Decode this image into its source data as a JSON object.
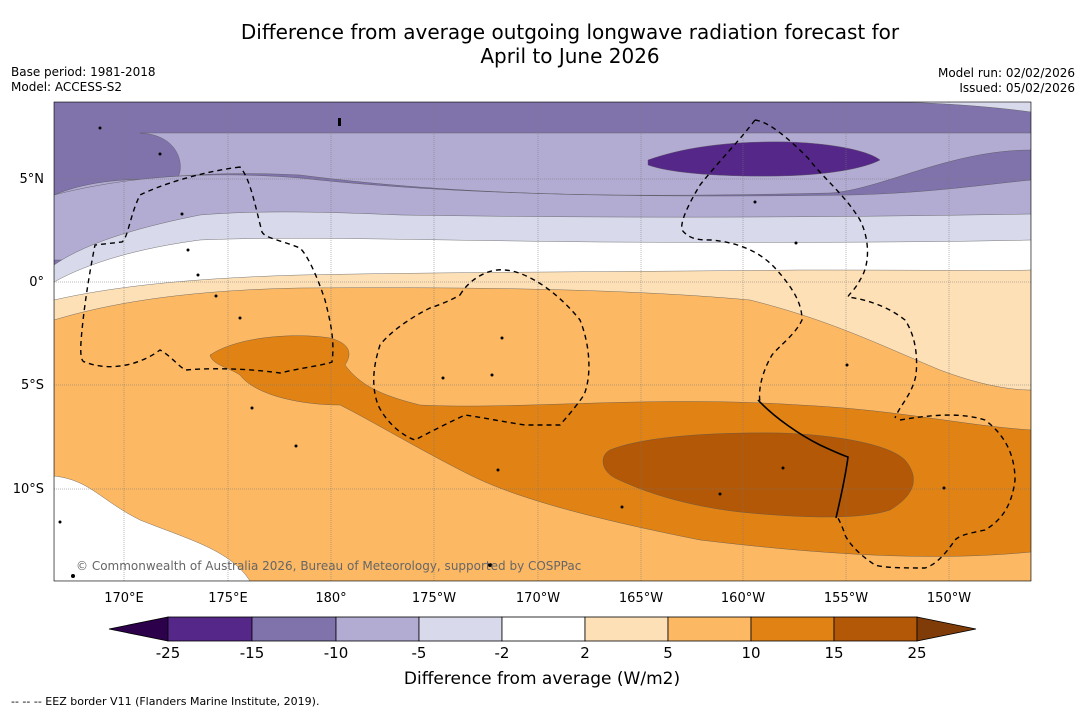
{
  "title_line1": "Difference from average outgoing longwave radiation forecast for",
  "title_line2": "April to June 2026",
  "meta_left": [
    "Base period: 1981-2018",
    "Model: ACCESS-S2"
  ],
  "meta_right": [
    "Model run: 02/02/2026",
    "Issued: 05/02/2026"
  ],
  "lat_labels": [
    "5°N",
    "0°",
    "5°S",
    "10°S"
  ],
  "lon_labels": [
    "170°E",
    "175°E",
    "180°",
    "175°W",
    "170°W",
    "165°W",
    "160°W",
    "155°W",
    "150°W"
  ],
  "copyright": "© Commonwealth of Australia 2026, Bureau of Meteorology, supported by COSPPac",
  "colorbar": {
    "ticks": [
      "-25",
      "-15",
      "-10",
      "-5",
      "-2",
      "2",
      "5",
      "10",
      "15",
      "25"
    ],
    "colors": [
      "#542788",
      "#8073ac",
      "#b2abd2",
      "#d8daeb",
      "#ffffff",
      "#fee0b6",
      "#fdb863",
      "#e08214",
      "#b35806"
    ],
    "under_color": "#2d004b",
    "over_color": "#7f3b08",
    "label": "Difference from average (W/m2)"
  },
  "footer": "--  --  -- EEZ border V11 (Flanders Marine Institute, 2019)."
}
